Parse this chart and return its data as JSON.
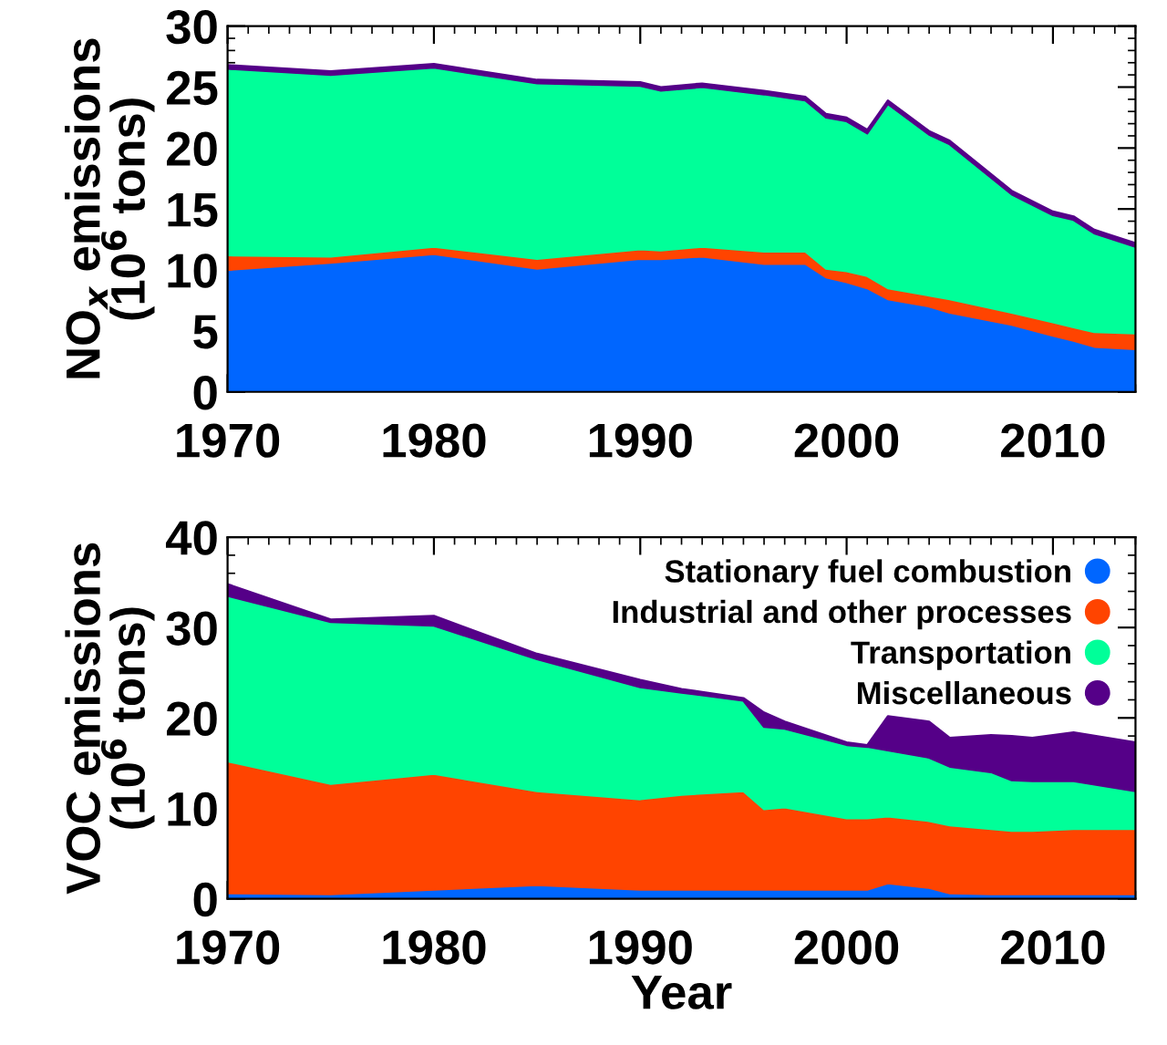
{
  "chart_data": [
    {
      "type": "area",
      "stacked": true,
      "ylabel": "NO$_{x}$ emissions\n(10$^{6}$ tons)",
      "x": [
        1970,
        1975,
        1980,
        1985,
        1990,
        1991,
        1993,
        1996,
        1998,
        1999,
        2000,
        2001,
        2002,
        2004,
        2005,
        2008,
        2010,
        2011,
        2012,
        2014
      ],
      "series": [
        {
          "color": "#0066ff",
          "values": [
            10.0,
            10.6,
            11.3,
            10.1,
            10.9,
            10.9,
            11.1,
            10.5,
            10.5,
            9.4,
            9.0,
            8.5,
            7.6,
            7.0,
            6.5,
            5.5,
            4.6,
            4.2,
            3.7,
            3.5
          ]
        },
        {
          "color": "#ff4400",
          "values": [
            1.2,
            0.5,
            0.6,
            0.8,
            0.8,
            0.7,
            0.8,
            1.0,
            1.0,
            0.7,
            0.9,
            1.0,
            0.9,
            0.9,
            1.1,
            1.0,
            1.1,
            1.1,
            1.2,
            1.3
          ]
        },
        {
          "color": "#00ff99",
          "values": [
            15.3,
            14.9,
            14.7,
            14.4,
            13.4,
            13.1,
            13.1,
            12.9,
            12.4,
            12.4,
            12.3,
            11.7,
            15.1,
            13.2,
            12.7,
            9.7,
            8.8,
            8.8,
            8.1,
            7.1
          ]
        },
        {
          "color": "#550088",
          "values": [
            0.3,
            0.3,
            0.3,
            0.3,
            0.3,
            0.3,
            0.3,
            0.3,
            0.3,
            0.3,
            0.3,
            0.3,
            0.3,
            0.3,
            0.3,
            0.3,
            0.3,
            0.3,
            0.3,
            0.3
          ]
        }
      ],
      "xlim": [
        1970,
        2014
      ],
      "xticks": [
        1970,
        1980,
        1990,
        2000,
        2010
      ],
      "ylim": [
        0,
        30
      ],
      "yticks": [
        0,
        5,
        10,
        15,
        20,
        25,
        30
      ],
      "grid": false,
      "legend": false
    },
    {
      "type": "area",
      "stacked": true,
      "xlabel": "Year",
      "ylabel": "VOC emissions\n(10$^{6}$ tons)",
      "x": [
        1970,
        1975,
        1980,
        1985,
        1990,
        1992,
        1995,
        1996,
        1997,
        2000,
        2001,
        2002,
        2004,
        2005,
        2007,
        2008,
        2009,
        2011,
        2014
      ],
      "series": [
        {
          "name": "Stationary fuel combustion",
          "color": "#0066ff",
          "values": [
            0.6,
            0.5,
            1.0,
            1.5,
            1.0,
            1.0,
            1.0,
            1.0,
            1.0,
            1.0,
            1.0,
            1.7,
            1.2,
            0.6,
            0.5,
            0.5,
            0.5,
            0.5,
            0.5
          ]
        },
        {
          "name": "Industrial and other processes",
          "color": "#ff4400",
          "values": [
            14.6,
            12.2,
            12.8,
            10.4,
            10.0,
            10.5,
            10.9,
            8.9,
            9.1,
            7.9,
            7.9,
            7.4,
            7.4,
            7.5,
            7.2,
            7.0,
            7.0,
            7.2,
            7.2
          ]
        },
        {
          "name": "Transportation",
          "color": "#00ff99",
          "values": [
            18.3,
            17.9,
            16.4,
            14.6,
            12.4,
            11.3,
            10.0,
            9.1,
            8.7,
            8.1,
            7.9,
            7.3,
            7.0,
            6.5,
            6.3,
            5.6,
            5.5,
            5.3,
            4.2
          ]
        },
        {
          "name": "Miscellaneous",
          "color": "#550088",
          "values": [
            1.3,
            0.3,
            1.1,
            0.6,
            0.8,
            0.4,
            0.3,
            1.6,
            0.8,
            0.3,
            0.2,
            3.8,
            4.0,
            3.2,
            4.1,
            4.9,
            4.8,
            5.4,
            5.4
          ]
        }
      ],
      "xlim": [
        1970,
        2014
      ],
      "xticks": [
        1970,
        1980,
        1990,
        2000,
        2010
      ],
      "ylim": [
        0,
        40
      ],
      "yticks": [
        0,
        10,
        20,
        30,
        40
      ],
      "grid": false,
      "legend": "top right"
    }
  ]
}
